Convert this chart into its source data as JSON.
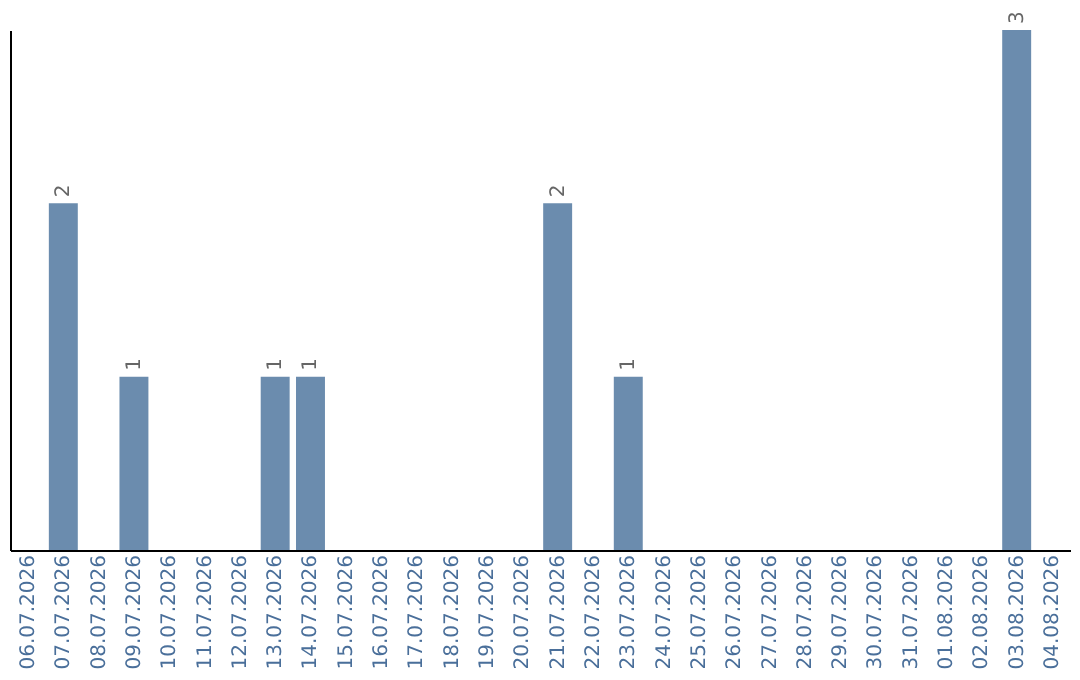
{
  "chart_data": {
    "type": "bar",
    "categories": [
      "06.07.2026",
      "07.07.2026",
      "08.07.2026",
      "09.07.2026",
      "10.07.2026",
      "11.07.2026",
      "12.07.2026",
      "13.07.2026",
      "14.07.2026",
      "15.07.2026",
      "16.07.2026",
      "17.07.2026",
      "18.07.2026",
      "19.07.2026",
      "20.07.2026",
      "21.07.2026",
      "22.07.2026",
      "23.07.2026",
      "24.07.2026",
      "25.07.2026",
      "26.07.2026",
      "27.07.2026",
      "28.07.2026",
      "29.07.2026",
      "30.07.2026",
      "31.07.2026",
      "01.08.2026",
      "02.08.2026",
      "03.08.2026",
      "04.08.2026"
    ],
    "values": [
      0,
      2,
      0,
      1,
      0,
      0,
      0,
      1,
      1,
      0,
      0,
      0,
      0,
      0,
      0,
      2,
      0,
      1,
      0,
      0,
      0,
      0,
      0,
      0,
      0,
      0,
      0,
      0,
      3,
      0
    ],
    "value_labels": [
      null,
      "2",
      null,
      "1",
      null,
      null,
      null,
      "1",
      "1",
      null,
      null,
      null,
      null,
      null,
      null,
      "2",
      null,
      "1",
      null,
      null,
      null,
      null,
      null,
      null,
      null,
      null,
      null,
      null,
      "3",
      null
    ],
    "color": "#6b8cae",
    "grid": false
  }
}
